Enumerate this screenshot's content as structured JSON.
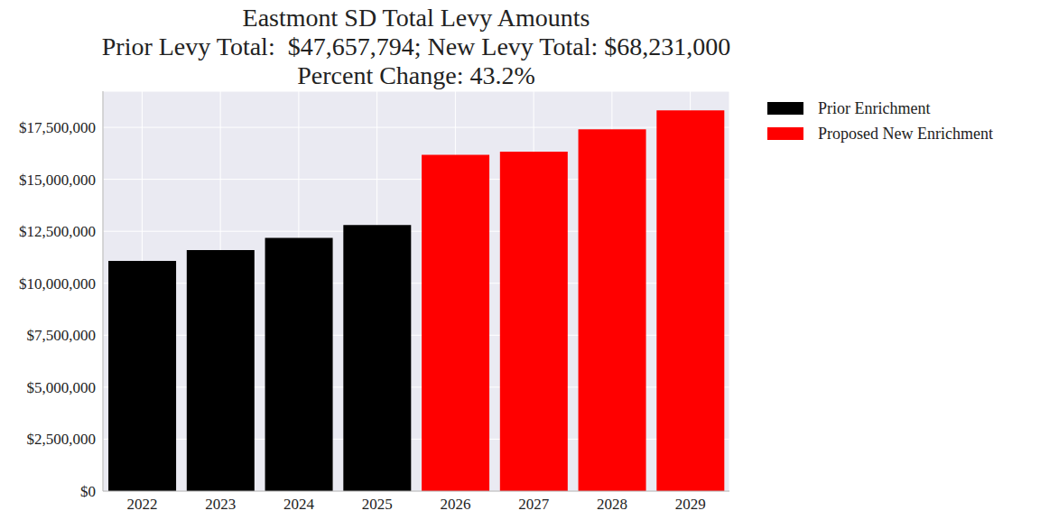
{
  "chart_data": {
    "type": "bar",
    "title": [
      "Eastmont SD Total Levy Amounts",
      "Prior Levy Total:  $47,657,794; New Levy Total: $68,231,000",
      "Percent Change: 43.2%"
    ],
    "categories": [
      "2022",
      "2023",
      "2024",
      "2025",
      "2026",
      "2027",
      "2028",
      "2029"
    ],
    "series": [
      {
        "name": "Prior Enrichment",
        "color": "#000000",
        "values": [
          11080000,
          11600000,
          12180000,
          12800000,
          null,
          null,
          null,
          null
        ]
      },
      {
        "name": "Proposed New Enrichment",
        "color": "#ff0000",
        "values": [
          null,
          null,
          null,
          null,
          16180000,
          16330000,
          17400000,
          18320000
        ]
      }
    ],
    "ylim": [
      0,
      19240000
    ],
    "yticks": [
      {
        "value": 0,
        "label": "$0"
      },
      {
        "value": 2500000,
        "label": "$2,500,000"
      },
      {
        "value": 5000000,
        "label": "$5,000,000"
      },
      {
        "value": 7500000,
        "label": "$7,500,000"
      },
      {
        "value": 10000000,
        "label": "$10,000,000"
      },
      {
        "value": 12500000,
        "label": "$12,500,000"
      },
      {
        "value": 15000000,
        "label": "$15,000,000"
      },
      {
        "value": 17500000,
        "label": "$17,500,000"
      }
    ],
    "grid": true,
    "legend": "right"
  }
}
